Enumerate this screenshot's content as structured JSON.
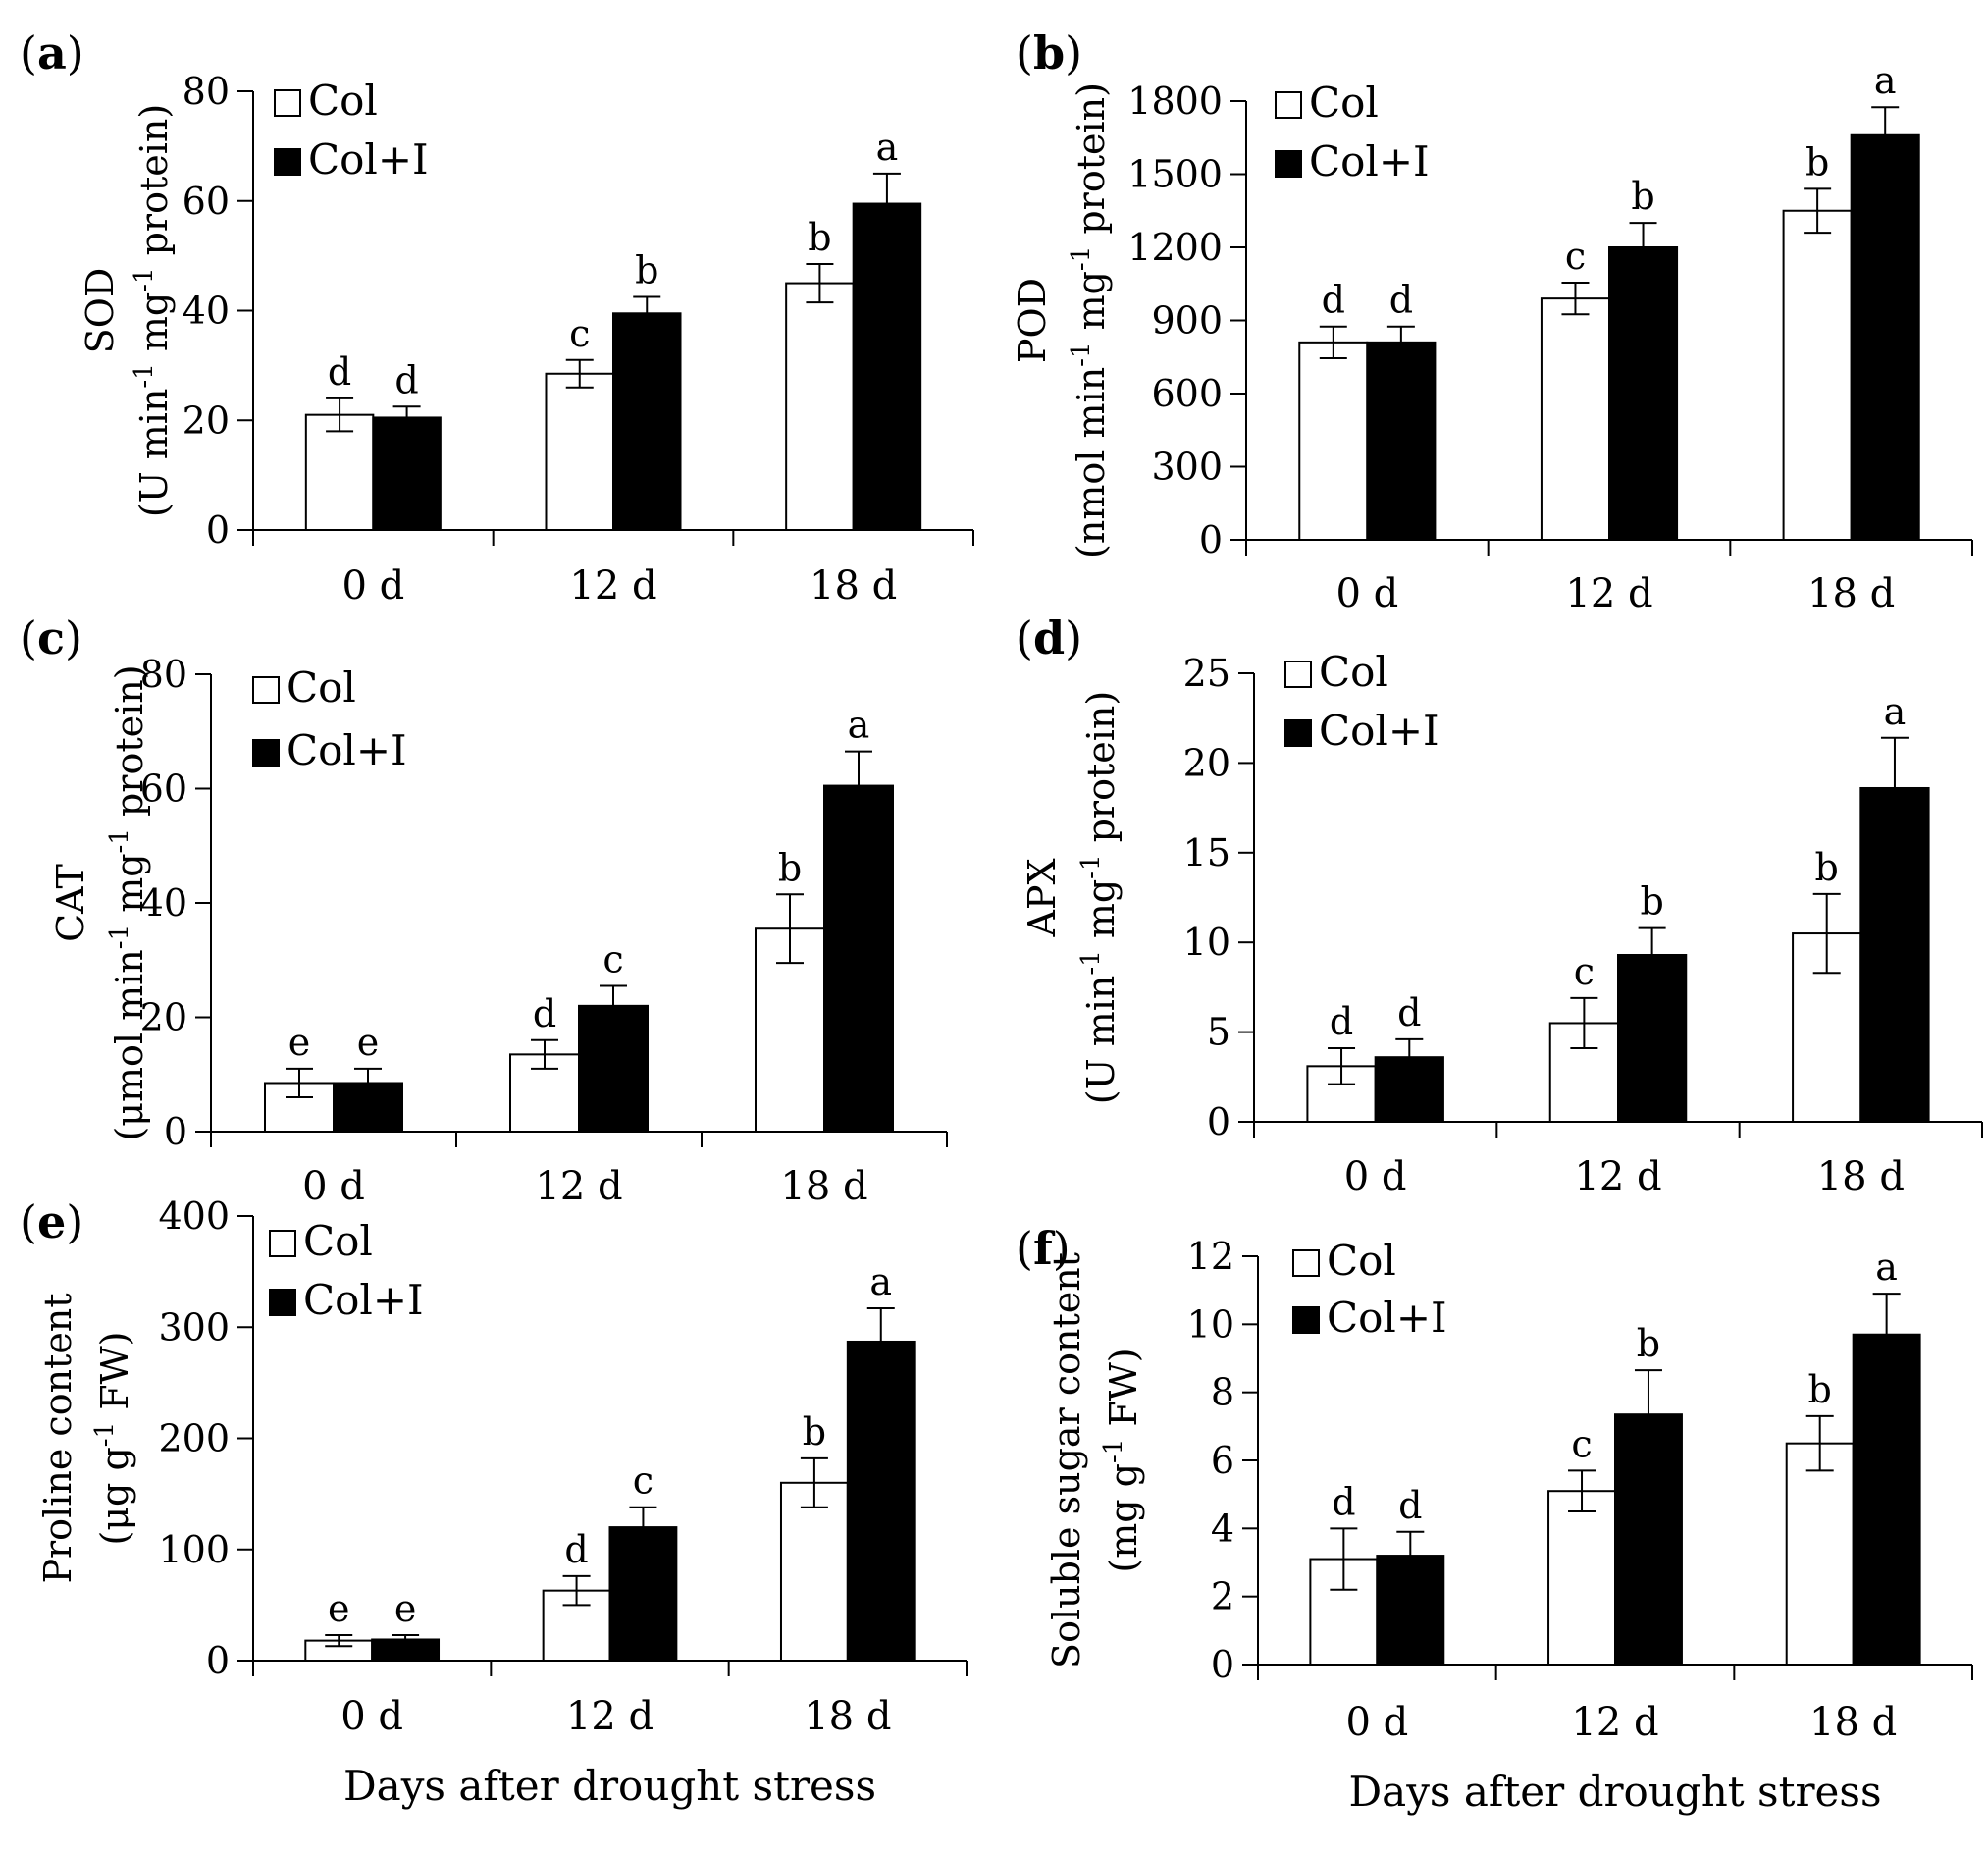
{
  "figure": {
    "x_title": "Days after drought stress",
    "legend": {
      "col": "Col",
      "col_i": "Col+I"
    }
  },
  "chart_data": [
    {
      "id": "a",
      "type": "bar",
      "panel_label": "a",
      "ylabel_line1": "SOD",
      "ylabel_line2": "(U min-1 mg-1 protein)",
      "ylabel_parts": [
        [
          "(U min",
          ""
        ],
        [
          "-1",
          "sup"
        ],
        [
          " mg",
          ""
        ],
        [
          "-1",
          "sup"
        ],
        [
          " protein)",
          ""
        ]
      ],
      "categories": [
        "0 d",
        "12 d",
        "18 d"
      ],
      "ylim": [
        0,
        80
      ],
      "yticks": [
        0,
        20,
        40,
        60,
        80
      ],
      "series": [
        {
          "name": "Col",
          "color": "#ffffff",
          "values": [
            21,
            28.5,
            45
          ],
          "errors": [
            3,
            2.5,
            3.5
          ],
          "letters": [
            "d",
            "c",
            "b"
          ]
        },
        {
          "name": "Col+I",
          "color": "#000000",
          "values": [
            20.5,
            39.5,
            59.5
          ],
          "errors": [
            2,
            3,
            5.5
          ],
          "letters": [
            "d",
            "b",
            "a"
          ]
        }
      ]
    },
    {
      "id": "b",
      "type": "bar",
      "panel_label": "b",
      "ylabel_line1": "POD",
      "ylabel_line2": "(nmol min-1 mg-1 protein)",
      "ylabel_parts": [
        [
          "(nmol min",
          ""
        ],
        [
          "-1",
          "sup"
        ],
        [
          " mg",
          ""
        ],
        [
          "-1",
          "sup"
        ],
        [
          " protein)",
          ""
        ]
      ],
      "categories": [
        "0 d",
        "12 d",
        "18 d"
      ],
      "ylim": [
        0,
        1800
      ],
      "yticks": [
        0,
        300,
        600,
        900,
        1200,
        1500,
        1800
      ],
      "series": [
        {
          "name": "Col",
          "color": "#ffffff",
          "values": [
            810,
            990,
            1350
          ],
          "errors": [
            65,
            65,
            90
          ],
          "letters": [
            "d",
            "c",
            "b"
          ]
        },
        {
          "name": "Col+I",
          "color": "#000000",
          "values": [
            810,
            1200,
            1660
          ],
          "errors": [
            65,
            100,
            115
          ],
          "letters": [
            "d",
            "b",
            "a"
          ]
        }
      ]
    },
    {
      "id": "c",
      "type": "bar",
      "panel_label": "c",
      "ylabel_line1": "CAT",
      "ylabel_line2": "(μmol min-1 mg-1 protein)",
      "ylabel_parts": [
        [
          "(μmol min",
          ""
        ],
        [
          "-1",
          "sup"
        ],
        [
          " mg",
          ""
        ],
        [
          "-1",
          "sup"
        ],
        [
          " protein)",
          ""
        ]
      ],
      "categories": [
        "0 d",
        "12 d",
        "18 d"
      ],
      "ylim": [
        0,
        80
      ],
      "yticks": [
        0,
        20,
        40,
        60,
        80
      ],
      "series": [
        {
          "name": "Col",
          "color": "#ffffff",
          "values": [
            8.5,
            13.5,
            35.5
          ],
          "errors": [
            2.5,
            2.5,
            6
          ],
          "letters": [
            "e",
            "d",
            "b"
          ]
        },
        {
          "name": "Col+I",
          "color": "#000000",
          "values": [
            8.5,
            22,
            60.5
          ],
          "errors": [
            2.5,
            3.5,
            6
          ],
          "letters": [
            "e",
            "c",
            "a"
          ]
        }
      ]
    },
    {
      "id": "d",
      "type": "bar",
      "panel_label": "d",
      "ylabel_line1": "APX",
      "ylabel_line2": "(U min-1 mg-1 protein)",
      "ylabel_parts": [
        [
          "(U min",
          ""
        ],
        [
          "-1",
          "sup"
        ],
        [
          " mg",
          ""
        ],
        [
          "-1",
          "sup"
        ],
        [
          " protein)",
          ""
        ]
      ],
      "categories": [
        "0 d",
        "12 d",
        "18 d"
      ],
      "ylim": [
        0,
        25
      ],
      "yticks": [
        0,
        5,
        10,
        15,
        20,
        25
      ],
      "series": [
        {
          "name": "Col",
          "color": "#ffffff",
          "values": [
            3.1,
            5.5,
            10.5
          ],
          "errors": [
            1,
            1.4,
            2.2
          ],
          "letters": [
            "d",
            "c",
            "b"
          ]
        },
        {
          "name": "Col+I",
          "color": "#000000",
          "values": [
            3.6,
            9.3,
            18.6
          ],
          "errors": [
            1,
            1.5,
            2.8
          ],
          "letters": [
            "d",
            "b",
            "a"
          ]
        }
      ]
    },
    {
      "id": "e",
      "type": "bar",
      "panel_label": "e",
      "ylabel_line1": "Proline content",
      "ylabel_line2": "(μg g-1 FW)",
      "ylabel_parts": [
        [
          "(μg g",
          ""
        ],
        [
          "-1",
          "sup"
        ],
        [
          " FW)",
          ""
        ]
      ],
      "categories": [
        "0 d",
        "12 d",
        "18 d"
      ],
      "ylim": [
        0,
        400
      ],
      "yticks": [
        0,
        100,
        200,
        300,
        400
      ],
      "series": [
        {
          "name": "Col",
          "color": "#ffffff",
          "values": [
            18,
            63,
            160
          ],
          "errors": [
            5,
            13,
            22
          ],
          "letters": [
            "e",
            "d",
            "b"
          ]
        },
        {
          "name": "Col+I",
          "color": "#000000",
          "values": [
            19,
            120,
            287
          ],
          "errors": [
            4,
            18,
            30
          ],
          "letters": [
            "e",
            "c",
            "a"
          ]
        }
      ]
    },
    {
      "id": "f",
      "type": "bar",
      "panel_label": "f",
      "ylabel_line1": "Soluble sugar content",
      "ylabel_line2": "(mg g-1 FW)",
      "ylabel_parts": [
        [
          "(mg g",
          ""
        ],
        [
          "-1",
          "sup"
        ],
        [
          " FW)",
          ""
        ]
      ],
      "categories": [
        "0 d",
        "12 d",
        "18 d"
      ],
      "ylim": [
        0,
        12
      ],
      "yticks": [
        0,
        2,
        4,
        6,
        8,
        10,
        12
      ],
      "series": [
        {
          "name": "Col",
          "color": "#ffffff",
          "values": [
            3.1,
            5.1,
            6.5
          ],
          "errors": [
            0.9,
            0.6,
            0.8
          ],
          "letters": [
            "d",
            "c",
            "b"
          ]
        },
        {
          "name": "Col+I",
          "color": "#000000",
          "values": [
            3.2,
            7.35,
            9.7
          ],
          "errors": [
            0.7,
            1.3,
            1.2
          ],
          "letters": [
            "d",
            "b",
            "a"
          ]
        }
      ]
    }
  ]
}
